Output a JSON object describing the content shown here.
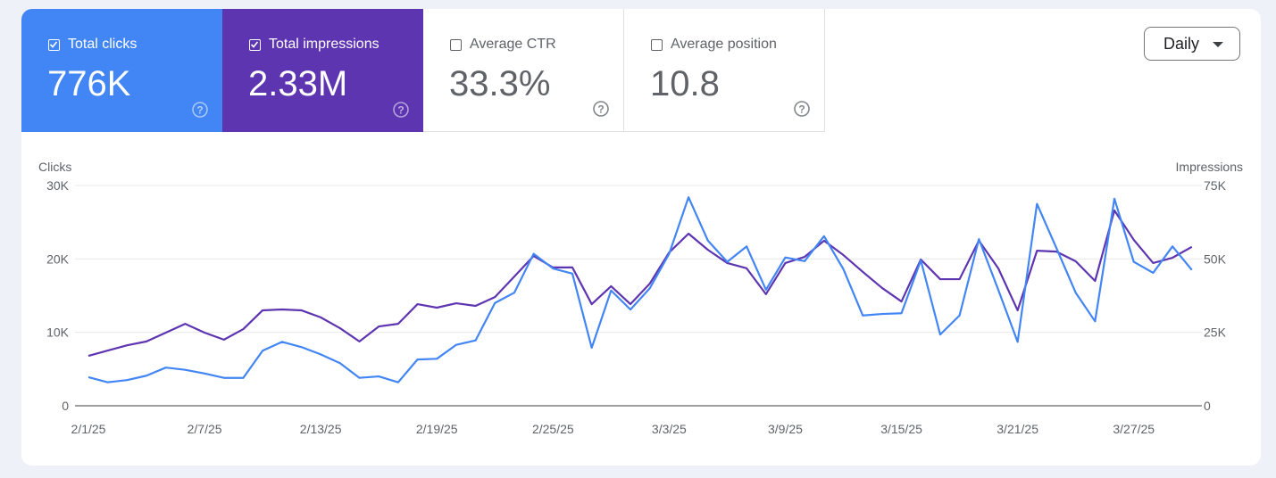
{
  "metrics": [
    {
      "label": "Total clicks",
      "value": "776K",
      "checked": true,
      "color": "#4285f4"
    },
    {
      "label": "Total impressions",
      "value": "2.33M",
      "checked": true,
      "color": "#5e35b1"
    },
    {
      "label": "Average CTR",
      "value": "33.3%",
      "checked": false
    },
    {
      "label": "Average position",
      "value": "10.8",
      "checked": false
    }
  ],
  "icons": {
    "help": "help-circle-icon",
    "checkbox": "checkbox-icon",
    "dropdown": "caret-down-icon"
  },
  "granularity": {
    "selected": "Daily"
  },
  "chart_data": {
    "type": "line",
    "ylabel_left": "Clicks",
    "ylabel_right": "Impressions",
    "ylim_left": [
      0,
      30000
    ],
    "ylim_right": [
      0,
      75000
    ],
    "yticks_left": [
      "0",
      "10K",
      "20K",
      "30K"
    ],
    "yticks_right": [
      "0",
      "25K",
      "50K",
      "75K"
    ],
    "xticks": [
      "2/1/25",
      "2/7/25",
      "2/13/25",
      "2/19/25",
      "2/25/25",
      "3/3/25",
      "3/9/25",
      "3/15/25",
      "3/21/25",
      "3/27/25"
    ],
    "xrange": [
      "2/1/25",
      "3/30/25"
    ],
    "grid": true,
    "series": [
      {
        "name": "Clicks",
        "axis": "left",
        "color": "#4285f4",
        "values": [
          3900,
          3200,
          3500,
          4100,
          5200,
          4900,
          4400,
          3800,
          3800,
          7500,
          8700,
          8000,
          7000,
          5800,
          3800,
          4000,
          3200,
          6300,
          6400,
          8300,
          8900,
          14000,
          15400,
          20700,
          18700,
          18000,
          7900,
          15700,
          13100,
          16000,
          20700,
          28400,
          22500,
          19600,
          21700,
          15800,
          20200,
          19700,
          23100,
          18600,
          12300,
          12500,
          12600,
          19800,
          9700,
          12300,
          22700,
          15800,
          8700,
          27500,
          21500,
          15400,
          11500,
          28200,
          19600,
          18100,
          21700,
          18500
        ]
      },
      {
        "name": "Impressions",
        "axis": "right",
        "color": "#5e35b1",
        "values": [
          17000,
          18800,
          20600,
          21900,
          24900,
          27900,
          24900,
          22500,
          26100,
          32500,
          32800,
          32500,
          30100,
          26400,
          21900,
          27000,
          27900,
          34600,
          33400,
          34900,
          34000,
          37000,
          44000,
          51000,
          47100,
          47100,
          34600,
          40700,
          34600,
          41600,
          52200,
          58600,
          53100,
          48600,
          46800,
          38000,
          48600,
          50700,
          56200,
          51300,
          45600,
          40100,
          35500,
          49800,
          43100,
          43100,
          56200,
          46800,
          32500,
          52800,
          52500,
          49200,
          42500,
          66500,
          56500,
          48600,
          50400,
          54100
        ]
      }
    ]
  }
}
